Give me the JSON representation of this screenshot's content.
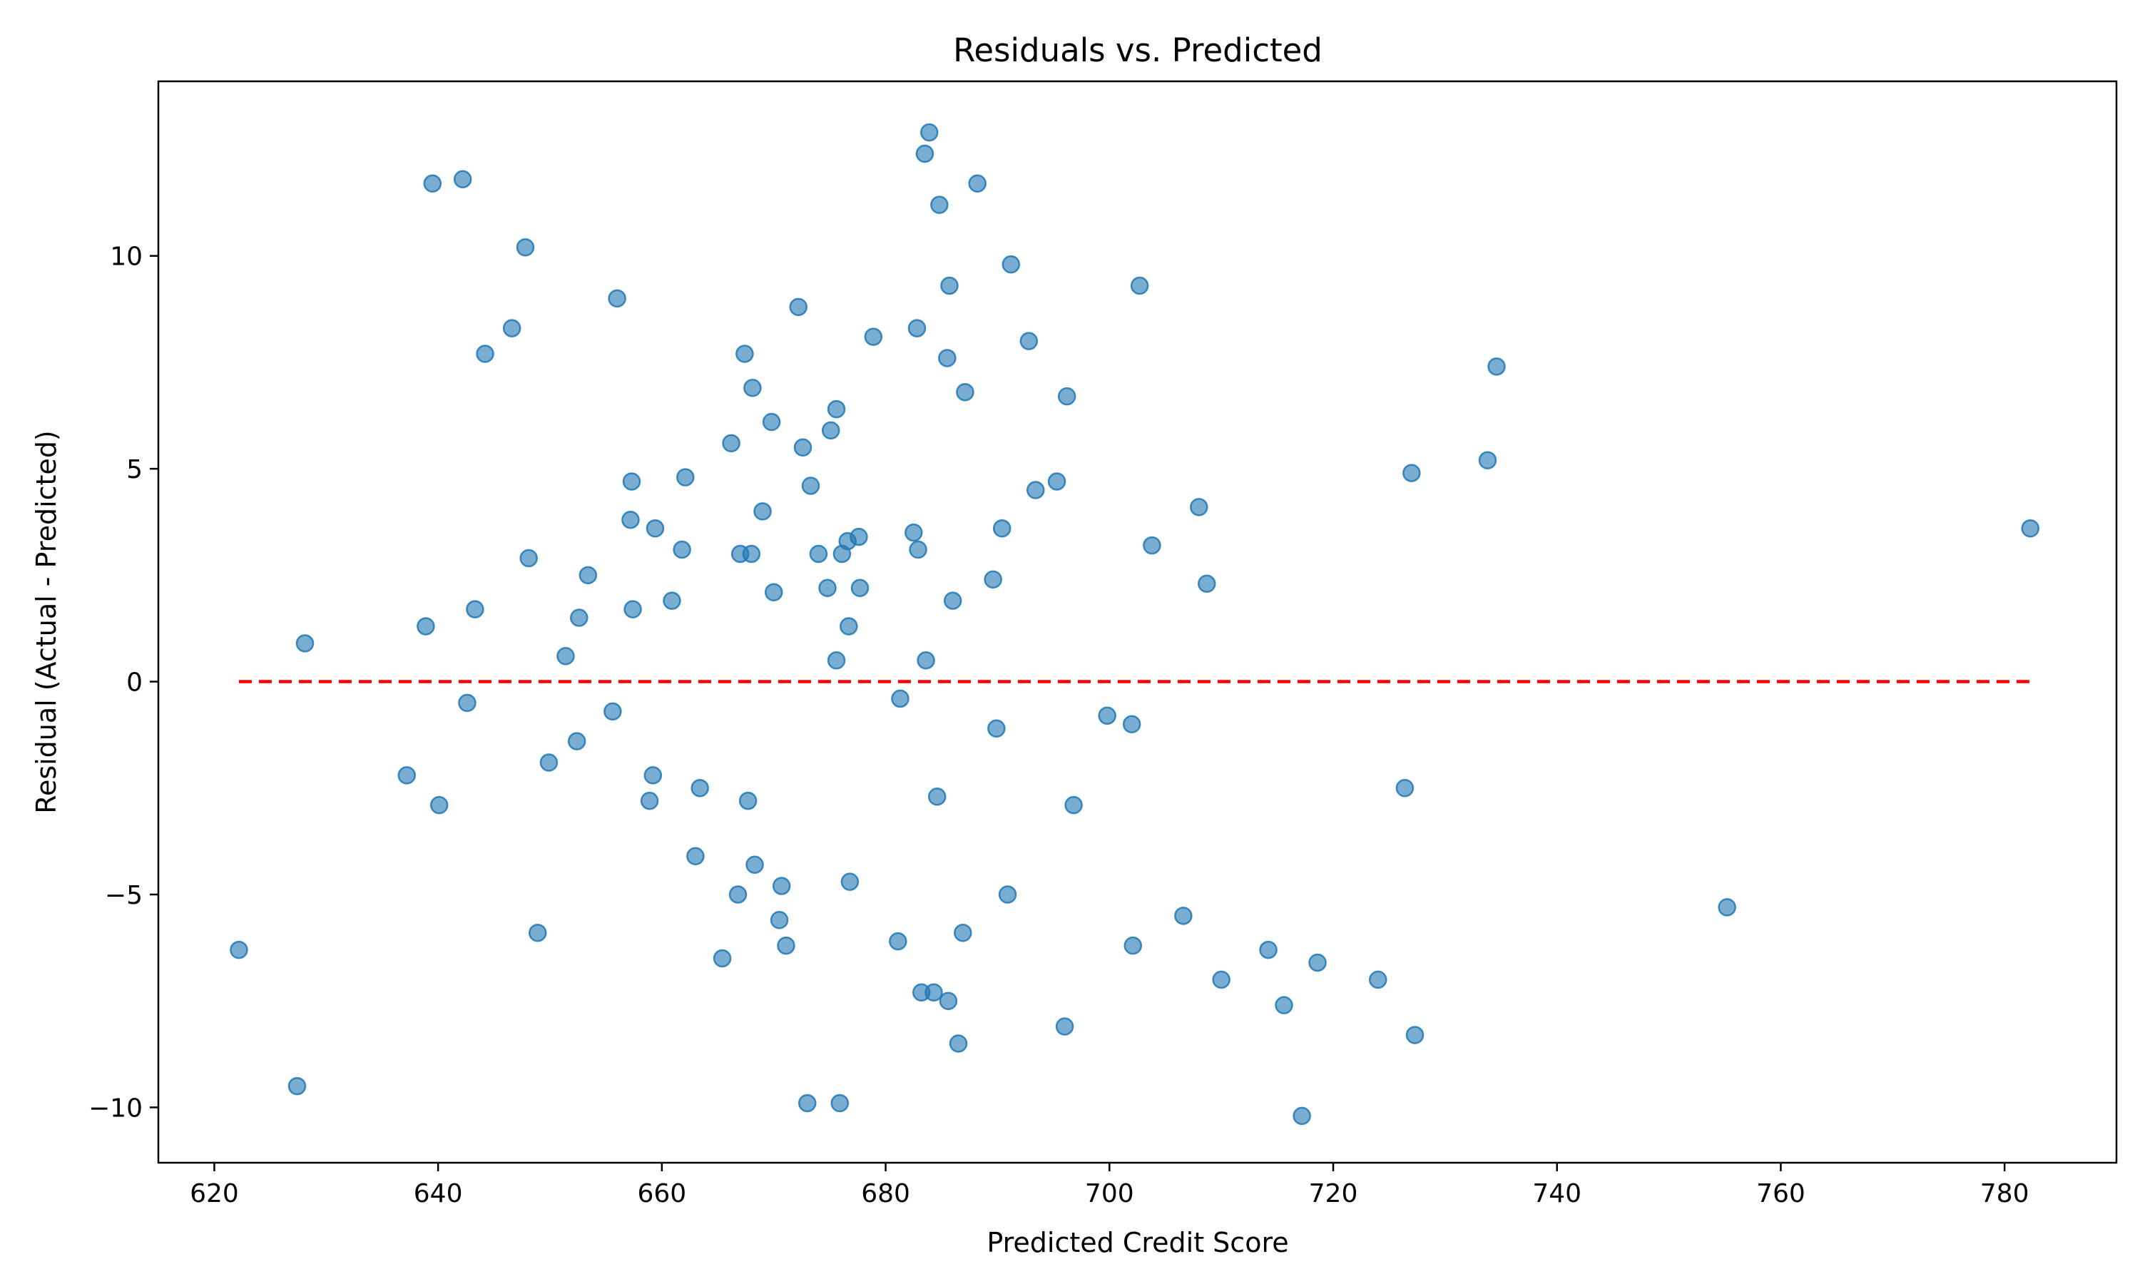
{
  "chart_data": {
    "type": "scatter",
    "title": "Residuals vs. Predicted",
    "xlabel": "Predicted Credit Score",
    "ylabel": "Residual (Actual - Predicted)",
    "xlim": [
      615,
      790
    ],
    "ylim": [
      -11.3,
      14.1
    ],
    "x_ticks": [
      620,
      640,
      660,
      680,
      700,
      720,
      740,
      760,
      780
    ],
    "y_ticks": [
      -10,
      -5,
      0,
      5,
      10
    ],
    "y_tick_labels": [
      "−10",
      "−5",
      "0",
      "5",
      "10"
    ],
    "grid": false,
    "marker_color": "#1f77b4",
    "marker_opacity": 0.6,
    "reference_line": {
      "y": 0,
      "x_range": [
        622.2,
        782.3
      ],
      "style": "dashed",
      "color": "#ff0000"
    },
    "points": [
      [
        622.2,
        -6.3
      ],
      [
        627.4,
        -9.5
      ],
      [
        628.1,
        0.9
      ],
      [
        637.2,
        -2.2
      ],
      [
        638.9,
        1.3
      ],
      [
        639.5,
        11.7
      ],
      [
        640.1,
        -2.9
      ],
      [
        642.2,
        11.8
      ],
      [
        642.6,
        -0.5
      ],
      [
        643.3,
        1.7
      ],
      [
        644.2,
        7.7
      ],
      [
        646.6,
        8.3
      ],
      [
        647.8,
        10.2
      ],
      [
        648.1,
        2.9
      ],
      [
        648.9,
        -5.9
      ],
      [
        649.9,
        -1.9
      ],
      [
        651.4,
        0.6
      ],
      [
        652.4,
        -1.4
      ],
      [
        652.6,
        1.5
      ],
      [
        653.4,
        2.5
      ],
      [
        655.6,
        -0.7
      ],
      [
        656.0,
        9.0
      ],
      [
        657.2,
        3.8
      ],
      [
        657.3,
        4.7
      ],
      [
        657.4,
        1.7
      ],
      [
        658.9,
        -2.8
      ],
      [
        659.2,
        -2.2
      ],
      [
        659.4,
        3.6
      ],
      [
        660.9,
        1.9
      ],
      [
        661.8,
        3.1
      ],
      [
        662.1,
        4.8
      ],
      [
        663.0,
        -4.1
      ],
      [
        663.4,
        -2.5
      ],
      [
        665.4,
        -6.5
      ],
      [
        666.2,
        5.6
      ],
      [
        666.8,
        -5.0
      ],
      [
        667.0,
        3.0
      ],
      [
        667.4,
        7.7
      ],
      [
        667.7,
        -2.8
      ],
      [
        668.0,
        3.0
      ],
      [
        668.1,
        6.9
      ],
      [
        668.3,
        -4.3
      ],
      [
        669.0,
        4.0
      ],
      [
        669.8,
        6.1
      ],
      [
        670.0,
        2.1
      ],
      [
        670.5,
        -5.6
      ],
      [
        670.7,
        -4.8
      ],
      [
        671.1,
        -6.2
      ],
      [
        672.2,
        8.8
      ],
      [
        672.6,
        5.5
      ],
      [
        673.0,
        -9.9
      ],
      [
        673.3,
        4.6
      ],
      [
        674.0,
        3.0
      ],
      [
        674.8,
        2.2
      ],
      [
        675.1,
        5.9
      ],
      [
        675.6,
        0.5
      ],
      [
        675.6,
        6.4
      ],
      [
        675.9,
        -9.9
      ],
      [
        676.1,
        3.0
      ],
      [
        676.6,
        3.3
      ],
      [
        676.7,
        1.3
      ],
      [
        676.8,
        -4.7
      ],
      [
        677.6,
        3.4
      ],
      [
        677.7,
        2.2
      ],
      [
        678.9,
        8.1
      ],
      [
        681.1,
        -6.1
      ],
      [
        681.3,
        -0.4
      ],
      [
        682.5,
        3.5
      ],
      [
        682.8,
        8.3
      ],
      [
        682.9,
        3.1
      ],
      [
        683.2,
        -7.3
      ],
      [
        683.5,
        12.4
      ],
      [
        683.6,
        0.5
      ],
      [
        683.9,
        12.9
      ],
      [
        684.3,
        -7.3
      ],
      [
        684.6,
        -2.7
      ],
      [
        684.8,
        11.2
      ],
      [
        685.5,
        7.6
      ],
      [
        685.6,
        -7.5
      ],
      [
        685.7,
        9.3
      ],
      [
        686.0,
        1.9
      ],
      [
        686.5,
        -8.5
      ],
      [
        686.9,
        -5.9
      ],
      [
        687.1,
        6.8
      ],
      [
        688.2,
        11.7
      ],
      [
        689.6,
        2.4
      ],
      [
        689.9,
        -1.1
      ],
      [
        690.4,
        3.6
      ],
      [
        690.9,
        -5.0
      ],
      [
        691.2,
        9.8
      ],
      [
        692.8,
        8.0
      ],
      [
        693.4,
        4.5
      ],
      [
        695.3,
        4.7
      ],
      [
        696.0,
        -8.1
      ],
      [
        696.2,
        6.7
      ],
      [
        696.8,
        -2.9
      ],
      [
        699.8,
        -0.8
      ],
      [
        702.0,
        -1.0
      ],
      [
        702.1,
        -6.2
      ],
      [
        702.7,
        9.3
      ],
      [
        703.8,
        3.2
      ],
      [
        706.6,
        -5.5
      ],
      [
        708.0,
        4.1
      ],
      [
        708.7,
        2.3
      ],
      [
        710.0,
        -7.0
      ],
      [
        714.2,
        -6.3
      ],
      [
        715.6,
        -7.6
      ],
      [
        717.2,
        -10.2
      ],
      [
        718.6,
        -6.6
      ],
      [
        724.0,
        -7.0
      ],
      [
        726.4,
        -2.5
      ],
      [
        727.0,
        4.9
      ],
      [
        727.3,
        -8.3
      ],
      [
        733.8,
        5.2
      ],
      [
        734.6,
        7.4
      ],
      [
        755.2,
        -5.3
      ],
      [
        782.3,
        3.6
      ]
    ]
  }
}
